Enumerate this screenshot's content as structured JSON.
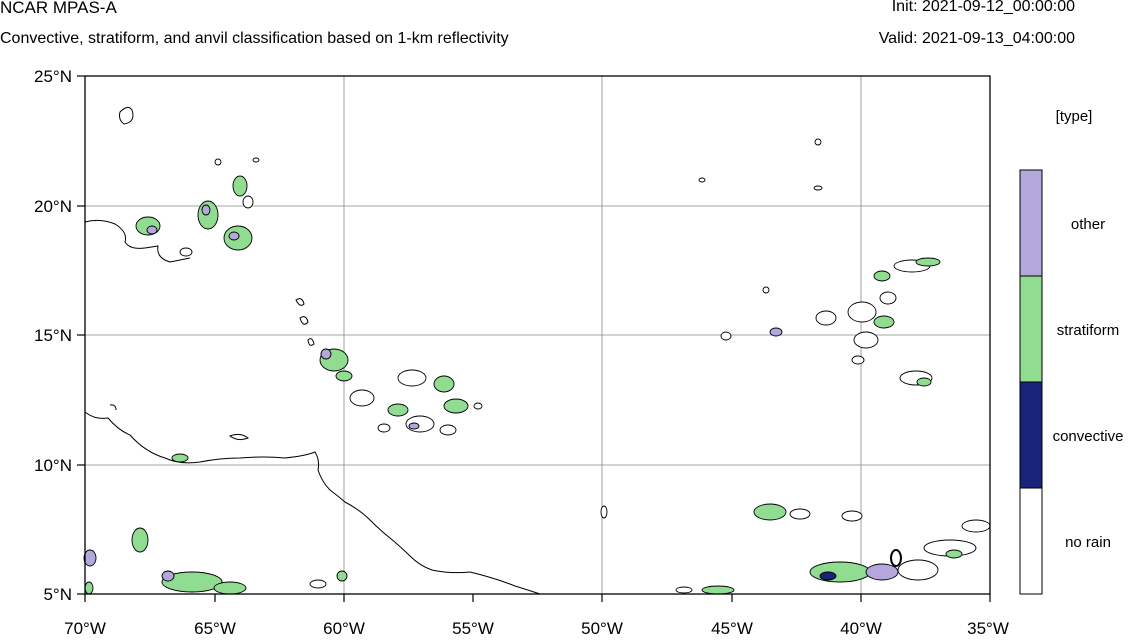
{
  "header": {
    "title": "NCAR MPAS-A",
    "subtitle": "Convective, stratiform, and anvil classification based on 1-km reflectivity",
    "init": "Init: 2021-09-12_00:00:00",
    "valid": "Valid: 2021-09-13_04:00:00"
  },
  "map": {
    "lon_ticks": [
      "70°W",
      "65°W",
      "60°W",
      "55°W",
      "50°W",
      "45°W",
      "40°W",
      "35°W"
    ],
    "lat_ticks": [
      "25°N",
      "20°N",
      "15°N",
      "10°N",
      "5°N"
    ],
    "lon_range": [
      -70,
      -35
    ],
    "lat_range": [
      5,
      25
    ]
  },
  "legend": {
    "title": "[type]",
    "items": [
      {
        "label": "other",
        "color": "#b4a7dc"
      },
      {
        "label": "stratiform",
        "color": "#90dc90"
      },
      {
        "label": "convective",
        "color": "#1a237a"
      },
      {
        "label": "no rain",
        "color": "#ffffff"
      }
    ]
  },
  "colors": {
    "other": "#b4a7dc",
    "stratiform": "#90dc90",
    "convective": "#1a237a",
    "coast": "#000000",
    "grid": "#888888"
  }
}
